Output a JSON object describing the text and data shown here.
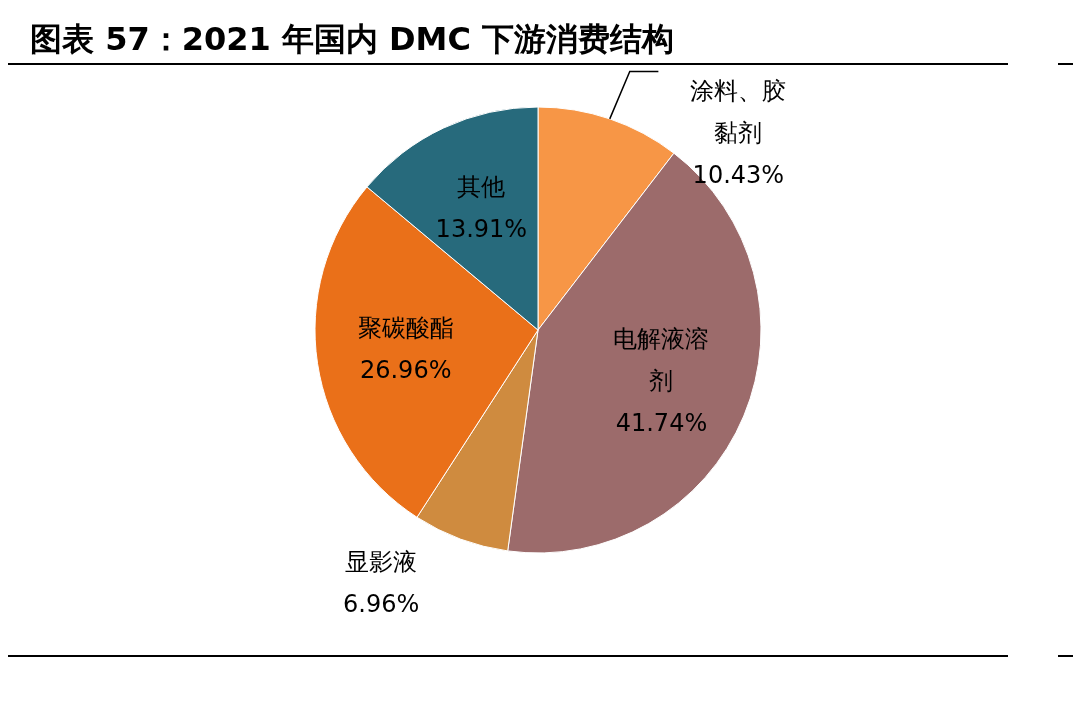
{
  "chart_data": {
    "type": "pie",
    "title": "图表 57：2021 年国内 DMC 下游消费结构",
    "categories": [
      "涂料、胶黏剂",
      "电解液溶剂",
      "显影液",
      "聚碳酸酯",
      "其他"
    ],
    "values": [
      10.43,
      41.74,
      6.96,
      26.96,
      13.91
    ],
    "colors": [
      "#f79646",
      "#9c6b6b",
      "#cf8b3f",
      "#ea7019",
      "#276a7c"
    ],
    "value_labels": [
      "10.43%",
      "41.74%",
      "6.96%",
      "26.96%",
      "13.91%"
    ]
  }
}
